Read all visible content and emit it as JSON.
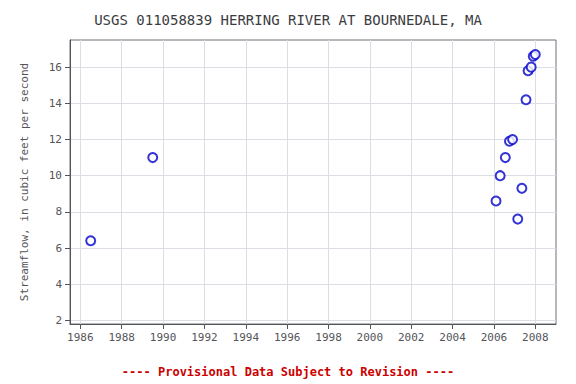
{
  "chart_data": {
    "type": "scatter",
    "title": "USGS 011058839 HERRING RIVER AT BOURNEDALE, MA",
    "ylabel": "Streamflow, in cubic feet per second",
    "x": [
      1986.5,
      1989.5,
      2006.1,
      2006.3,
      2006.55,
      2006.75,
      2006.9,
      2007.15,
      2007.35,
      2007.55,
      2007.65,
      2007.8,
      2007.9,
      2008.0
    ],
    "values": [
      6.4,
      11.0,
      8.6,
      10.0,
      11.0,
      11.9,
      12.0,
      7.6,
      9.3,
      14.2,
      15.8,
      16.0,
      16.6,
      16.7
    ],
    "color": "#0000CC",
    "marker": "open circle",
    "xlim": [
      1985.5,
      2009.0
    ],
    "ylim": [
      1.8,
      17.5
    ],
    "xticks": [
      1986,
      1988,
      1990,
      1992,
      1994,
      1996,
      1998,
      2000,
      2002,
      2004,
      2006,
      2008
    ],
    "yticks": [
      2,
      4,
      6,
      8,
      10,
      12,
      14,
      16
    ],
    "grid": true,
    "annotations": [
      {
        "text": "---- Provisional Data Subject to Revision ----",
        "color": "#cc0000"
      }
    ]
  }
}
